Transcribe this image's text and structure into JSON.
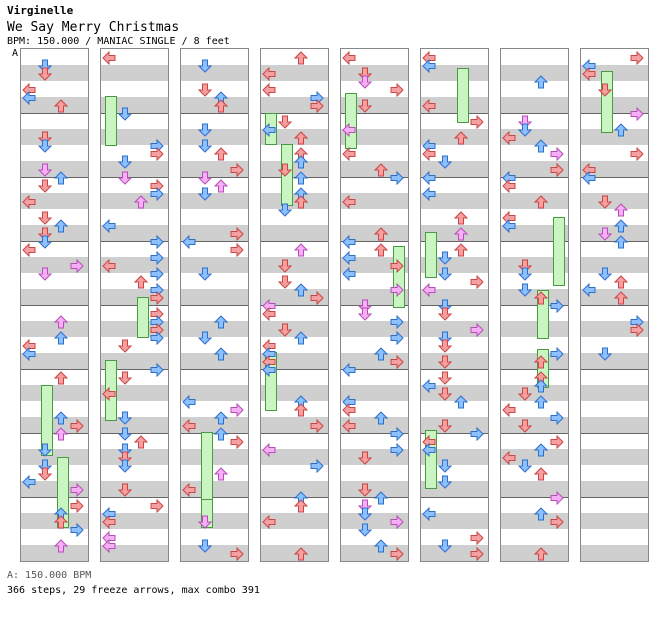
{
  "header": {
    "artist": "Virginelle",
    "title": "We Say Merry Christmas",
    "meta": "BPM: 150.000 / MANIAC SINGLE / 8 feet",
    "section_marker": "A"
  },
  "footer": {
    "bpm_line": "A: 150.000 BPM",
    "stats_line": "366 steps, 29 freeze arrows, max combo 391"
  },
  "colors": {
    "left_right": "#f2a0a0",
    "down": "#7fb6ff",
    "up": "#f4a6a6",
    "quarter": "#ff8fa3",
    "eighth": "#7fb6ff",
    "sixteenth": "#f5aaf5",
    "freeze_body": "#c8f5c0",
    "stripe": "#cfcfcf"
  },
  "chart": {
    "column_count": 8,
    "measures_per_column": 8
  }
}
